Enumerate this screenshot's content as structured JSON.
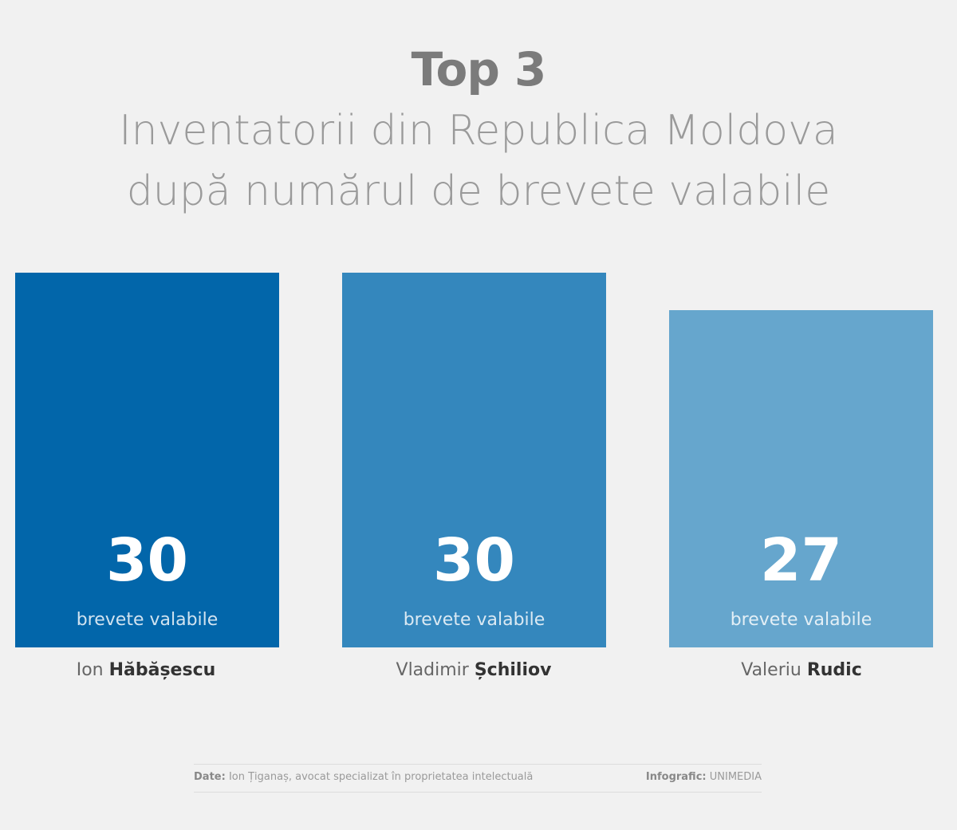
{
  "title": "Top 3",
  "subtitle_line1": "Inventatorii din Republica Moldova",
  "subtitle_line2": "după numărul de brevete valabile",
  "chart_data": {
    "type": "bar",
    "title": "Top 3",
    "subtitle": "Inventatorii din Republica Moldova după numărul de brevete valabile",
    "categories": [
      "Ion Hăbășescu",
      "Vladimir Șchiliov",
      "Valeriu Rudic"
    ],
    "values": [
      30,
      30,
      27
    ],
    "value_label": "brevete valabile",
    "colors": [
      "#0266aa",
      "#3487bd",
      "#66a6cd"
    ],
    "ylim": [
      0,
      30
    ],
    "grid": false,
    "legend": "none"
  },
  "bars": [
    {
      "value": "30",
      "unit": "brevete valabile",
      "first_name": "Ion",
      "last_name": "Hăbășescu"
    },
    {
      "value": "30",
      "unit": "brevete valabile",
      "first_name": "Vladimir",
      "last_name": "Șchiliov"
    },
    {
      "value": "27",
      "unit": "brevete valabile",
      "first_name": "Valeriu",
      "last_name": "Rudic"
    }
  ],
  "footer": {
    "source_label": "Date:",
    "source_text": "Ion Țiganaș, avocat specializat în proprietatea intelectuală",
    "credit_label": "Infografic:",
    "credit_text": "UNIMEDIA"
  }
}
